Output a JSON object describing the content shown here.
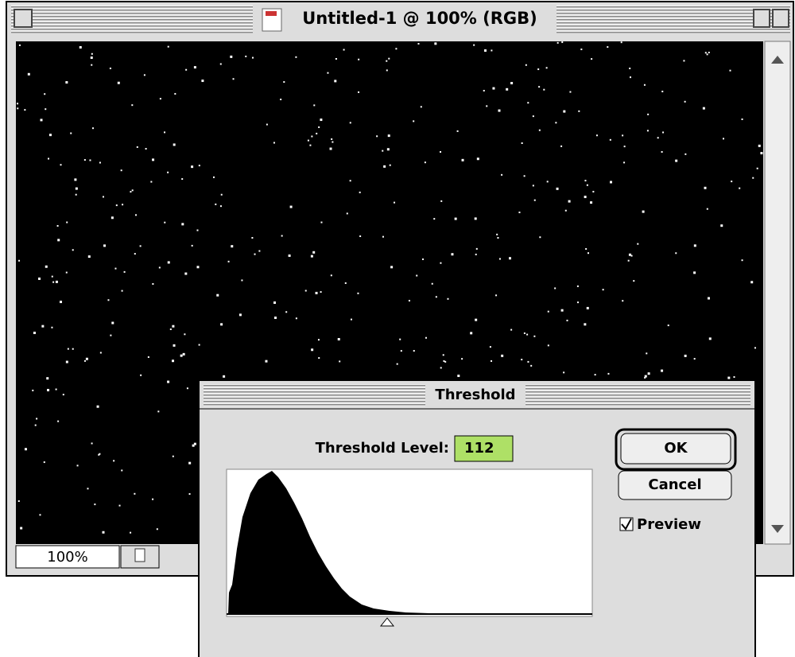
{
  "window": {
    "title": "Untitled-1 @ 100% (RGB)",
    "zoom": "100%"
  },
  "dialog": {
    "title": "Threshold",
    "level_label": "Threshold Level:",
    "level": 112,
    "buttons": {
      "ok": "OK",
      "cancel": "Cancel"
    },
    "preview": "Preview"
  }
}
